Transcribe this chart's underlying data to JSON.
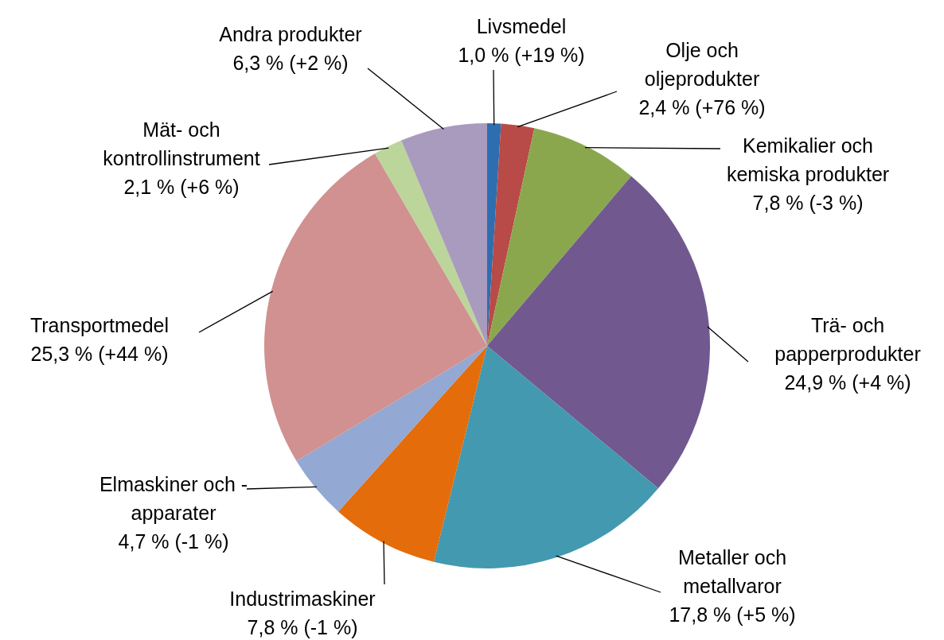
{
  "chart_data": {
    "type": "pie",
    "categories": [
      "Livsmedel",
      "Olje och oljeprodukter",
      "Kemikalier och kemiska produkter",
      "Trä- och papperprodukter",
      "Metaller och metallvaror",
      "Industrimaskiner",
      "Elmaskiner och -apparater",
      "Transportmedel",
      "Mät- och kontrollinstrument",
      "Andra produkter"
    ],
    "values": [
      1.0,
      2.4,
      7.8,
      24.9,
      17.8,
      7.8,
      4.7,
      25.3,
      2.1,
      6.3
    ],
    "colors": [
      "#2e6db0",
      "#b84a47",
      "#8aa74e",
      "#71598f",
      "#4299b0",
      "#e46c0a",
      "#93a8d3",
      "#d09190",
      "#bcd59a",
      "#a99bbe"
    ],
    "value_labels": [
      "1,0 % (+19 %)",
      "2,4 % (+76 %)",
      "7,8 % (-3 %)",
      "24,9 % (+4 %)",
      "17,8 % (+5 %)",
      "7,8 % (-1 %)",
      "4,7 % (-1 %)",
      "25,3 % (+44 %)",
      "2,1 % (+6 %)",
      "6,3 % (+2 %)"
    ]
  }
}
